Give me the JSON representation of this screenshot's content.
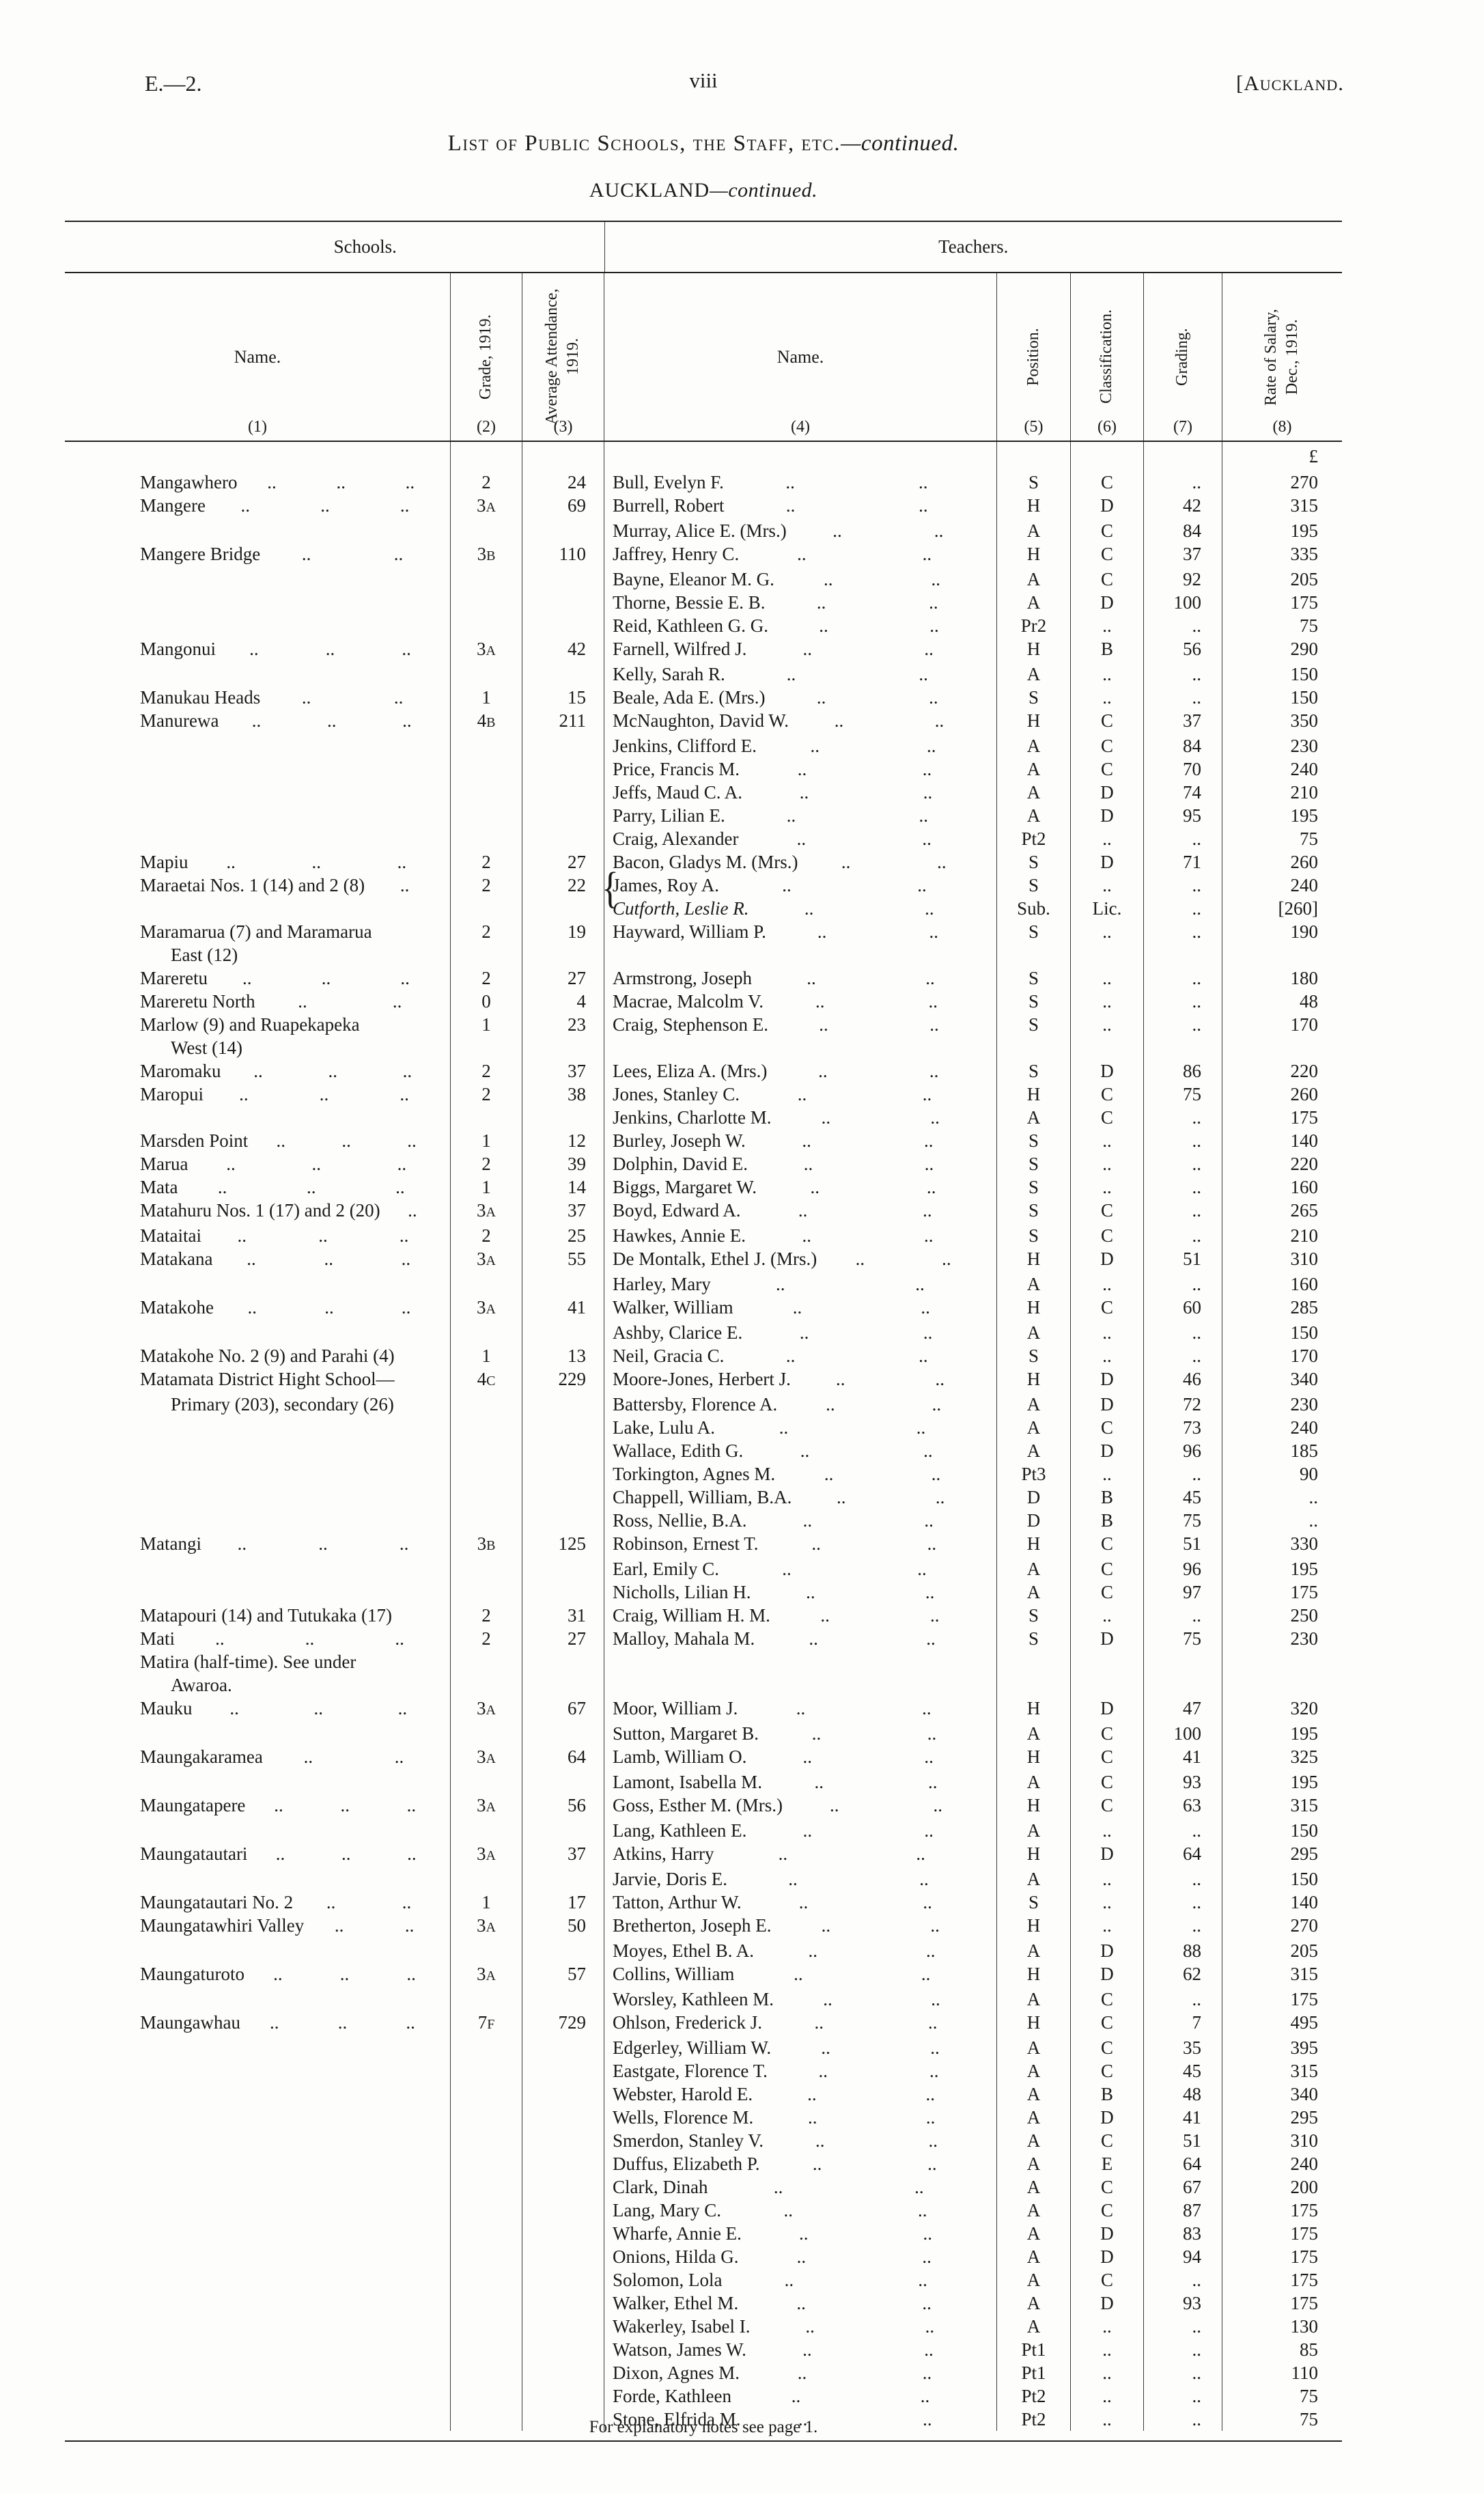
{
  "page": {
    "doc_ref": "E.—2.",
    "folio": "viii",
    "running_head": "[Auckland.",
    "title": {
      "main": "List of Public Schools, the Staff, etc.",
      "cont": "—continued."
    },
    "subtitle": {
      "main": "AUCKLAND",
      "cont": "—continued."
    },
    "footnote": "For explanatory notes see page 1."
  },
  "table": {
    "group_headers": {
      "schools": "Schools.",
      "teachers": "Teachers."
    },
    "columns": [
      {
        "label": "Name.",
        "num": "(1)",
        "rot": false
      },
      {
        "label": "Grade, 1919.",
        "num": "(2)",
        "rot": true
      },
      {
        "label": "Average Attendance, 1919.",
        "num": "(3)",
        "rot": true
      },
      {
        "label": "Name.",
        "num": "(4)",
        "rot": false
      },
      {
        "label": "Position.",
        "num": "(5)",
        "rot": true
      },
      {
        "label": "Classification.",
        "num": "(6)",
        "rot": true
      },
      {
        "label": "Grading.",
        "num": "(7)",
        "rot": true
      },
      {
        "label": "Rate of Salary, Dec., 1919.",
        "num": "(8)",
        "rot": true
      }
    ],
    "currency_symbol": "£",
    "leader": "..",
    "rows": [
      {
        "s": "Mangawhero",
        "sd": 3,
        "g": "2",
        "a": "24",
        "t": "Bull, Evelyn F.",
        "p": "S",
        "c": "C",
        "gr": "..",
        "sal": "270"
      },
      {
        "s": "Mangere",
        "sd": 3,
        "g": "3A",
        "a": "69",
        "t": "Burrell, Robert",
        "p": "H",
        "c": "D",
        "gr": "42",
        "sal": "315"
      },
      {
        "t": "Murray, Alice E. (Mrs.)",
        "p": "A",
        "c": "C",
        "gr": "84",
        "sal": "195"
      },
      {
        "s": "Mangere Bridge",
        "sd": 2,
        "g": "3B",
        "a": "110",
        "t": "Jaffrey, Henry C.",
        "p": "H",
        "c": "C",
        "gr": "37",
        "sal": "335"
      },
      {
        "t": "Bayne, Eleanor M. G.",
        "p": "A",
        "c": "C",
        "gr": "92",
        "sal": "205"
      },
      {
        "t": "Thorne, Bessie E. B.",
        "p": "A",
        "c": "D",
        "gr": "100",
        "sal": "175"
      },
      {
        "t": "Reid, Kathleen G. G.",
        "p": "Pr2",
        "c": "..",
        "gr": "..",
        "sal": "75"
      },
      {
        "s": "Mangonui",
        "sd": 3,
        "g": "3A",
        "a": "42",
        "t": "Farnell, Wilfred J.",
        "p": "H",
        "c": "B",
        "gr": "56",
        "sal": "290"
      },
      {
        "t": "Kelly, Sarah R.",
        "p": "A",
        "c": "..",
        "gr": "..",
        "sal": "150"
      },
      {
        "s": "Manukau Heads",
        "sd": 2,
        "g": "1",
        "a": "15",
        "t": "Beale, Ada E. (Mrs.)",
        "p": "S",
        "c": "..",
        "gr": "..",
        "sal": "150"
      },
      {
        "s": "Manurewa",
        "sd": 3,
        "g": "4B",
        "a": "211",
        "t": "McNaughton, David W.",
        "p": "H",
        "c": "C",
        "gr": "37",
        "sal": "350"
      },
      {
        "t": "Jenkins, Clifford E.",
        "p": "A",
        "c": "C",
        "gr": "84",
        "sal": "230"
      },
      {
        "t": "Price, Francis M.",
        "p": "A",
        "c": "C",
        "gr": "70",
        "sal": "240"
      },
      {
        "t": "Jeffs, Maud C. A.",
        "p": "A",
        "c": "D",
        "gr": "74",
        "sal": "210"
      },
      {
        "t": "Parry, Lilian E.",
        "p": "A",
        "c": "D",
        "gr": "95",
        "sal": "195"
      },
      {
        "t": "Craig, Alexander",
        "p": "Pt2",
        "c": "..",
        "gr": "..",
        "sal": "75"
      },
      {
        "s": "Mapiu",
        "sd": 3,
        "g": "2",
        "a": "27",
        "t": "Bacon, Gladys M. (Mrs.)",
        "p": "S",
        "c": "D",
        "gr": "71",
        "sal": "260"
      },
      {
        "s": "Maraetai Nos. 1 (14) and 2 (8)",
        "sd": 1,
        "g": "2",
        "a": "22",
        "t": "James, Roy A.",
        "p": "S",
        "c": "..",
        "gr": "..",
        "sal": "240",
        "brace": true
      },
      {
        "t": "Cutforth, Leslie R.",
        "p": "Sub.",
        "c": "Lic.",
        "gr": "..",
        "sal": "[260]",
        "it": true
      },
      {
        "s": "Maramarua (7) and Maramarua",
        "g": "2",
        "a": "19",
        "t": "Hayward, William P.",
        "p": "S",
        "c": "..",
        "gr": "..",
        "sal": "190"
      },
      {
        "s": "East (12)",
        "ind": true
      },
      {
        "s": "Mareretu",
        "sd": 3,
        "g": "2",
        "a": "27",
        "t": "Armstrong, Joseph",
        "p": "S",
        "c": "..",
        "gr": "..",
        "sal": "180"
      },
      {
        "s": "Mareretu North",
        "sd": 2,
        "g": "0",
        "a": "4",
        "t": "Macrae, Malcolm V.",
        "p": "S",
        "c": "..",
        "gr": "..",
        "sal": "48"
      },
      {
        "s": "Marlow (9) and Ruapekapeka",
        "g": "1",
        "a": "23",
        "t": "Craig, Stephenson E.",
        "p": "S",
        "c": "..",
        "gr": "..",
        "sal": "170"
      },
      {
        "s": "West (14)",
        "ind": true
      },
      {
        "s": "Maromaku",
        "sd": 3,
        "g": "2",
        "a": "37",
        "t": "Lees, Eliza A. (Mrs.)",
        "p": "S",
        "c": "D",
        "gr": "86",
        "sal": "220"
      },
      {
        "s": "Maropui",
        "sd": 3,
        "g": "2",
        "a": "38",
        "t": "Jones, Stanley C.",
        "p": "H",
        "c": "C",
        "gr": "75",
        "sal": "260"
      },
      {
        "t": "Jenkins, Charlotte M.",
        "p": "A",
        "c": "C",
        "gr": "..",
        "sal": "175"
      },
      {
        "s": "Marsden Point",
        "sd": 3,
        "g": "1",
        "a": "12",
        "t": "Burley, Joseph W.",
        "p": "S",
        "c": "..",
        "gr": "..",
        "sal": "140"
      },
      {
        "s": "Marua",
        "sd": 3,
        "g": "2",
        "a": "39",
        "t": "Dolphin, David E.",
        "p": "S",
        "c": "..",
        "gr": "..",
        "sal": "220"
      },
      {
        "s": "Mata",
        "sd": 3,
        "g": "1",
        "a": "14",
        "t": "Biggs, Margaret W.",
        "p": "S",
        "c": "..",
        "gr": "..",
        "sal": "160"
      },
      {
        "s": "Matahuru Nos. 1 (17) and 2 (20)",
        "sd": 1,
        "g": "3A",
        "a": "37",
        "t": "Boyd, Edward A.",
        "p": "S",
        "c": "C",
        "gr": "..",
        "sal": "265"
      },
      {
        "s": "Mataitai",
        "sd": 3,
        "g": "2",
        "a": "25",
        "t": "Hawkes, Annie E.",
        "p": "S",
        "c": "C",
        "gr": "..",
        "sal": "210"
      },
      {
        "s": "Matakana",
        "sd": 3,
        "g": "3A",
        "a": "55",
        "t": "De Montalk, Ethel J. (Mrs.)",
        "p": "H",
        "c": "D",
        "gr": "51",
        "sal": "310"
      },
      {
        "t": "Harley, Mary",
        "p": "A",
        "c": "..",
        "gr": "..",
        "sal": "160"
      },
      {
        "s": "Matakohe",
        "sd": 3,
        "g": "3A",
        "a": "41",
        "t": "Walker, William",
        "p": "H",
        "c": "C",
        "gr": "60",
        "sal": "285"
      },
      {
        "t": "Ashby, Clarice E.",
        "p": "A",
        "c": "..",
        "gr": "..",
        "sal": "150"
      },
      {
        "s": "Matakohe No. 2 (9) and Parahi (4)",
        "g": "1",
        "a": "13",
        "t": "Neil, Gracia C.",
        "p": "S",
        "c": "..",
        "gr": "..",
        "sal": "170"
      },
      {
        "s": "Matamata District Hight School—",
        "g": "4C",
        "a": "229",
        "t": "Moore-Jones, Herbert J.",
        "p": "H",
        "c": "D",
        "gr": "46",
        "sal": "340"
      },
      {
        "s": "Primary (203), secondary (26)",
        "ind": true,
        "t": "Battersby, Florence A.",
        "p": "A",
        "c": "D",
        "gr": "72",
        "sal": "230"
      },
      {
        "t": "Lake, Lulu A.",
        "p": "A",
        "c": "C",
        "gr": "73",
        "sal": "240"
      },
      {
        "t": "Wallace, Edith G.",
        "p": "A",
        "c": "D",
        "gr": "96",
        "sal": "185"
      },
      {
        "t": "Torkington, Agnes M.",
        "p": "Pt3",
        "c": "..",
        "gr": "..",
        "sal": "90"
      },
      {
        "t": "Chappell, William, B.A.",
        "p": "D",
        "c": "B",
        "gr": "45",
        "sal": ".."
      },
      {
        "t": "Ross, Nellie, B.A.",
        "p": "D",
        "c": "B",
        "gr": "75",
        "sal": ".."
      },
      {
        "s": "Matangi",
        "sd": 3,
        "g": "3B",
        "a": "125",
        "t": "Robinson, Ernest T.",
        "p": "H",
        "c": "C",
        "gr": "51",
        "sal": "330"
      },
      {
        "t": "Earl, Emily C.",
        "p": "A",
        "c": "C",
        "gr": "96",
        "sal": "195"
      },
      {
        "t": "Nicholls, Lilian H.",
        "p": "A",
        "c": "C",
        "gr": "97",
        "sal": "175"
      },
      {
        "s": "Matapouri (14) and Tutukaka (17)",
        "g": "2",
        "a": "31",
        "t": "Craig, William H. M.",
        "p": "S",
        "c": "..",
        "gr": "..",
        "sal": "250"
      },
      {
        "s": "Mati",
        "sd": 3,
        "g": "2",
        "a": "27",
        "t": "Malloy, Mahala M.",
        "p": "S",
        "c": "D",
        "gr": "75",
        "sal": "230"
      },
      {
        "s": "Matira (half-time).  See under"
      },
      {
        "s": "Awaroa.",
        "ind": true
      },
      {
        "s": "Mauku",
        "sd": 3,
        "g": "3A",
        "a": "67",
        "t": "Moor, William J.",
        "p": "H",
        "c": "D",
        "gr": "47",
        "sal": "320"
      },
      {
        "t": "Sutton, Margaret B.",
        "p": "A",
        "c": "C",
        "gr": "100",
        "sal": "195"
      },
      {
        "s": "Maungakaramea",
        "sd": 2,
        "g": "3A",
        "a": "64",
        "t": "Lamb, William O.",
        "p": "H",
        "c": "C",
        "gr": "41",
        "sal": "325"
      },
      {
        "t": "Lamont, Isabella M.",
        "p": "A",
        "c": "C",
        "gr": "93",
        "sal": "195"
      },
      {
        "s": "Maungatapere",
        "sd": 3,
        "g": "3A",
        "a": "56",
        "t": "Goss, Esther M. (Mrs.)",
        "p": "H",
        "c": "C",
        "gr": "63",
        "sal": "315"
      },
      {
        "t": "Lang, Kathleen E.",
        "p": "A",
        "c": "..",
        "gr": "..",
        "sal": "150"
      },
      {
        "s": "Maungatautari",
        "sd": 3,
        "g": "3A",
        "a": "37",
        "t": "Atkins, Harry",
        "p": "H",
        "c": "D",
        "gr": "64",
        "sal": "295"
      },
      {
        "t": "Jarvie, Doris E.",
        "p": "A",
        "c": "..",
        "gr": "..",
        "sal": "150"
      },
      {
        "s": "Maungatautari No. 2",
        "sd": 2,
        "g": "1",
        "a": "17",
        "t": "Tatton, Arthur W.",
        "p": "S",
        "c": "..",
        "gr": "..",
        "sal": "140"
      },
      {
        "s": "Maungatawhiri Valley",
        "sd": 2,
        "g": "3A",
        "a": "50",
        "t": "Bretherton, Joseph E.",
        "p": "H",
        "c": "..",
        "gr": "..",
        "sal": "270"
      },
      {
        "t": "Moyes, Ethel B. A.",
        "p": "A",
        "c": "D",
        "gr": "88",
        "sal": "205"
      },
      {
        "s": "Maungaturoto",
        "sd": 3,
        "g": "3A",
        "a": "57",
        "t": "Collins, William",
        "p": "H",
        "c": "D",
        "gr": "62",
        "sal": "315"
      },
      {
        "t": "Worsley, Kathleen M.",
        "p": "A",
        "c": "C",
        "gr": "..",
        "sal": "175"
      },
      {
        "s": "Maungawhau",
        "sd": 3,
        "g": "7F",
        "a": "729",
        "t": "Ohlson, Frederick J.",
        "p": "H",
        "c": "C",
        "gr": "7",
        "sal": "495"
      },
      {
        "t": "Edgerley, William W.",
        "p": "A",
        "c": "C",
        "gr": "35",
        "sal": "395"
      },
      {
        "t": "Eastgate, Florence T.",
        "p": "A",
        "c": "C",
        "gr": "45",
        "sal": "315"
      },
      {
        "t": "Webster, Harold E.",
        "p": "A",
        "c": "B",
        "gr": "48",
        "sal": "340"
      },
      {
        "t": "Wells, Florence M.",
        "p": "A",
        "c": "D",
        "gr": "41",
        "sal": "295"
      },
      {
        "t": "Smerdon, Stanley V.",
        "p": "A",
        "c": "C",
        "gr": "51",
        "sal": "310"
      },
      {
        "t": "Duffus, Elizabeth P.",
        "p": "A",
        "c": "E",
        "gr": "64",
        "sal": "240"
      },
      {
        "t": "Clark, Dinah",
        "p": "A",
        "c": "C",
        "gr": "67",
        "sal": "200"
      },
      {
        "t": "Lang, Mary C.",
        "p": "A",
        "c": "C",
        "gr": "87",
        "sal": "175"
      },
      {
        "t": "Wharfe, Annie E.",
        "p": "A",
        "c": "D",
        "gr": "83",
        "sal": "175"
      },
      {
        "t": "Onions, Hilda G.",
        "p": "A",
        "c": "D",
        "gr": "94",
        "sal": "175"
      },
      {
        "t": "Solomon, Lola",
        "p": "A",
        "c": "C",
        "gr": "..",
        "sal": "175"
      },
      {
        "t": "Walker, Ethel M.",
        "p": "A",
        "c": "D",
        "gr": "93",
        "sal": "175"
      },
      {
        "t": "Wakerley, Isabel I.",
        "p": "A",
        "c": "..",
        "gr": "..",
        "sal": "130"
      },
      {
        "t": "Watson, James W.",
        "p": "Pt1",
        "c": "..",
        "gr": "..",
        "sal": "85"
      },
      {
        "t": "Dixon, Agnes M.",
        "p": "Pt1",
        "c": "..",
        "gr": "..",
        "sal": "110"
      },
      {
        "t": "Forde, Kathleen",
        "p": "Pt2",
        "c": "..",
        "gr": "..",
        "sal": "75"
      },
      {
        "t": "Stone, Elfrida M.",
        "p": "Pt2",
        "c": "..",
        "gr": "..",
        "sal": "75"
      }
    ]
  }
}
